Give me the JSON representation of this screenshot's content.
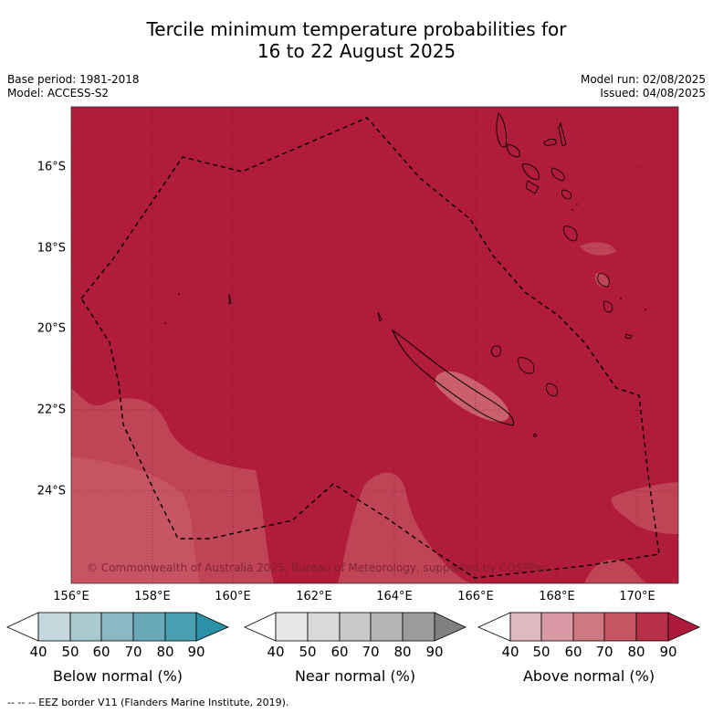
{
  "title_line1": "Tercile minimum temperature probabilities for",
  "title_line2": "16 to 22 August 2025",
  "base_period": "Base period: 1981-2018",
  "model": "Model: ACCESS-S2",
  "model_run": "Model run: 02/08/2025",
  "issued": "Issued: 04/08/2025",
  "lat_labels": [
    "16°S",
    "18°S",
    "20°S",
    "22°S",
    "24°S"
  ],
  "lon_labels": [
    "156°E",
    "158°E",
    "160°E",
    "162°E",
    "164°E",
    "166°E",
    "168°E",
    "170°E"
  ],
  "copyright": "© Commonwealth of Australia 2025, Bureau of Meteorology, supported by COSPPac",
  "colorbars": [
    {
      "label": "Below normal (%)",
      "ticks": [
        "40",
        "50",
        "60",
        "70",
        "80",
        "90"
      ],
      "colors": [
        "#ffffff",
        "#c3d7dd",
        "#a8c9d0",
        "#8bb8c3",
        "#69a8b6",
        "#4aa0b0",
        "#2a91a6"
      ]
    },
    {
      "label": "Near normal (%)",
      "ticks": [
        "40",
        "50",
        "60",
        "70",
        "80",
        "90"
      ],
      "colors": [
        "#ffffff",
        "#e6e6e6",
        "#d9d9d9",
        "#c9c9c9",
        "#b4b4b4",
        "#9c9c9c",
        "#808080"
      ]
    },
    {
      "label": "Above normal (%)",
      "ticks": [
        "40",
        "50",
        "60",
        "70",
        "80",
        "90"
      ],
      "colors": [
        "#ffffff",
        "#e0b8c0",
        "#d99aa3",
        "#cf7881",
        "#c55563",
        "#b83047",
        "#b01a3a"
      ]
    }
  ],
  "footer": "-- -- -- EEZ border V11 (Flanders Marine Institute, 2019).",
  "map_colors": {
    "high": "#b01c3a",
    "mid": "#c24a5a",
    "low": "#cd6b76",
    "lowest": "#d7868e"
  }
}
